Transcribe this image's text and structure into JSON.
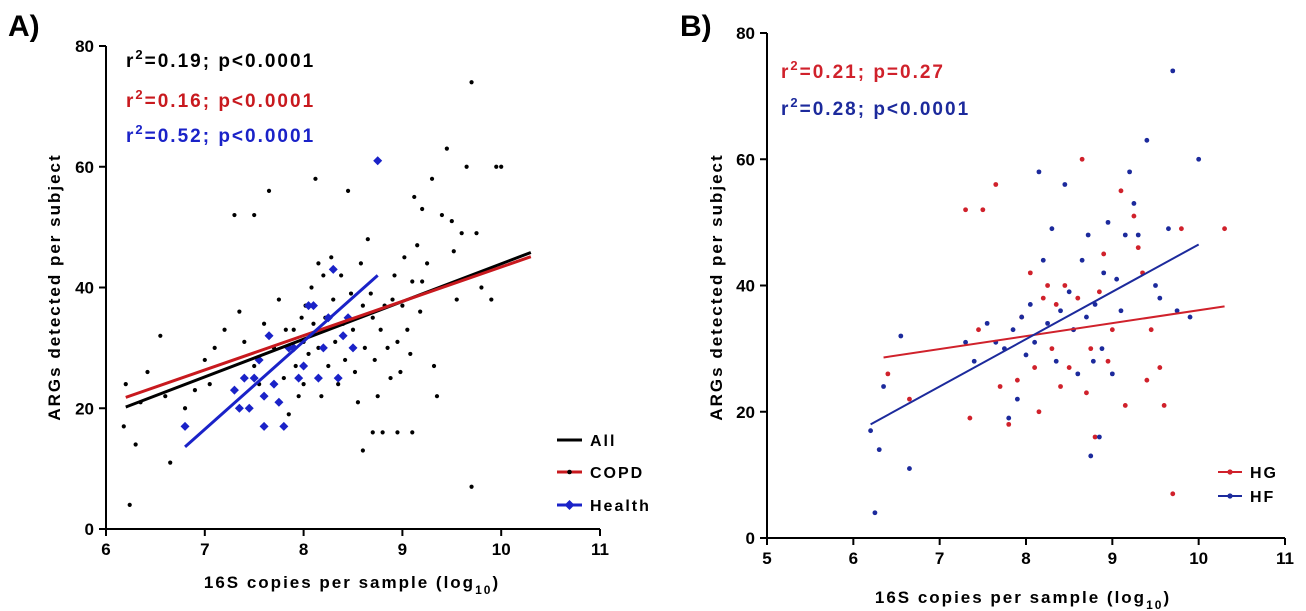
{
  "colors": {
    "all": "#000000",
    "copd": "#c8191e",
    "health": "#1a22c8",
    "hg": "#d0212b",
    "hf": "#1c2a9c"
  },
  "chart_data": [
    {
      "panel": "A)",
      "type": "scatter",
      "xlabel": "16S copies per sample (log",
      "xlabel_sub": "10",
      "xlabel_end": ")",
      "ylabel": "ARGs detected per subject",
      "xlim": [
        6,
        11
      ],
      "ylim": [
        0,
        80
      ],
      "xticks": [
        "6",
        "7",
        "8",
        "9",
        "10",
        "11"
      ],
      "yticks": [
        "0",
        "20",
        "40",
        "60",
        "80"
      ],
      "annotations": [
        {
          "r": "r",
          "sup": "2",
          "text": "=0.19; p<0.0001",
          "series": "all"
        },
        {
          "r": "r",
          "sup": "2",
          "text": "=0.16; p<0.0001",
          "series": "copd"
        },
        {
          "r": "r",
          "sup": "2",
          "text": "=0.52; p<0.0001",
          "series": "health"
        }
      ],
      "legend": {
        "position": "bottom-right",
        "entries": [
          {
            "label": "All",
            "series": "all",
            "marker": "line"
          },
          {
            "label": "COPD",
            "series": "copd",
            "marker": "dot"
          },
          {
            "label": "Health",
            "series": "health",
            "marker": "diamond"
          }
        ]
      },
      "series": [
        {
          "name": "COPD",
          "key": "copd",
          "marker": "dot",
          "points": [
            [
              6.18,
              17
            ],
            [
              6.2,
              24
            ],
            [
              6.24,
              4
            ],
            [
              6.3,
              14
            ],
            [
              6.35,
              21
            ],
            [
              6.42,
              26
            ],
            [
              6.55,
              32
            ],
            [
              6.6,
              22
            ],
            [
              6.65,
              11
            ],
            [
              6.8,
              20
            ],
            [
              6.9,
              23
            ],
            [
              7.0,
              28
            ],
            [
              7.05,
              24
            ],
            [
              7.1,
              30
            ],
            [
              7.2,
              33
            ],
            [
              7.3,
              52
            ],
            [
              7.35,
              36
            ],
            [
              7.4,
              31
            ],
            [
              7.5,
              27
            ],
            [
              7.5,
              52
            ],
            [
              7.55,
              24
            ],
            [
              7.6,
              34
            ],
            [
              7.65,
              56
            ],
            [
              7.7,
              30
            ],
            [
              7.75,
              38
            ],
            [
              7.8,
              25
            ],
            [
              7.82,
              33
            ],
            [
              7.85,
              19
            ],
            [
              7.9,
              33
            ],
            [
              7.92,
              27
            ],
            [
              7.95,
              22
            ],
            [
              7.98,
              35
            ],
            [
              8.0,
              31
            ],
            [
              8.0,
              24
            ],
            [
              8.02,
              37
            ],
            [
              8.05,
              29
            ],
            [
              8.08,
              40
            ],
            [
              8.1,
              34
            ],
            [
              8.12,
              58
            ],
            [
              8.15,
              44
            ],
            [
              8.15,
              30
            ],
            [
              8.18,
              22
            ],
            [
              8.2,
              42
            ],
            [
              8.22,
              35
            ],
            [
              8.25,
              27
            ],
            [
              8.28,
              45
            ],
            [
              8.3,
              38
            ],
            [
              8.32,
              31
            ],
            [
              8.35,
              24
            ],
            [
              8.38,
              42
            ],
            [
              8.4,
              34
            ],
            [
              8.42,
              28
            ],
            [
              8.45,
              56
            ],
            [
              8.48,
              39
            ],
            [
              8.5,
              33
            ],
            [
              8.52,
              26
            ],
            [
              8.55,
              21
            ],
            [
              8.58,
              44
            ],
            [
              8.6,
              37
            ],
            [
              8.62,
              30
            ],
            [
              8.65,
              48
            ],
            [
              8.68,
              39
            ],
            [
              8.7,
              35
            ],
            [
              8.72,
              28
            ],
            [
              8.75,
              22
            ],
            [
              8.78,
              33
            ],
            [
              8.8,
              16
            ],
            [
              8.82,
              37
            ],
            [
              8.85,
              30
            ],
            [
              8.88,
              25
            ],
            [
              8.9,
              38
            ],
            [
              8.92,
              42
            ],
            [
              8.95,
              31
            ],
            [
              8.98,
              26
            ],
            [
              9.0,
              37
            ],
            [
              9.02,
              45
            ],
            [
              9.05,
              33
            ],
            [
              9.08,
              29
            ],
            [
              9.1,
              41
            ],
            [
              9.12,
              55
            ],
            [
              9.15,
              47
            ],
            [
              9.18,
              36
            ],
            [
              9.2,
              53
            ],
            [
              9.25,
              44
            ],
            [
              9.3,
              58
            ],
            [
              9.32,
              27
            ],
            [
              9.35,
              22
            ],
            [
              9.4,
              52
            ],
            [
              9.45,
              63
            ],
            [
              9.5,
              51
            ],
            [
              9.52,
              46
            ],
            [
              9.55,
              38
            ],
            [
              9.6,
              49
            ],
            [
              9.65,
              60
            ],
            [
              9.7,
              74
            ],
            [
              9.75,
              49
            ],
            [
              9.8,
              40
            ],
            [
              9.9,
              38
            ],
            [
              9.95,
              60
            ],
            [
              10.0,
              60
            ],
            [
              9.2,
              41
            ],
            [
              8.95,
              16
            ],
            [
              9.1,
              16
            ],
            [
              8.7,
              16
            ],
            [
              8.6,
              13
            ],
            [
              9.7,
              7
            ]
          ]
        },
        {
          "name": "Health",
          "key": "health",
          "marker": "diamond",
          "points": [
            [
              6.8,
              17
            ],
            [
              7.3,
              23
            ],
            [
              7.35,
              20
            ],
            [
              7.4,
              25
            ],
            [
              7.45,
              20
            ],
            [
              7.5,
              25
            ],
            [
              7.55,
              28
            ],
            [
              7.6,
              22
            ],
            [
              7.6,
              17
            ],
            [
              7.65,
              32
            ],
            [
              7.7,
              24
            ],
            [
              7.75,
              21
            ],
            [
              7.8,
              17
            ],
            [
              7.85,
              30
            ],
            [
              7.9,
              30
            ],
            [
              7.95,
              25
            ],
            [
              8.0,
              27
            ],
            [
              8.05,
              37
            ],
            [
              8.1,
              37
            ],
            [
              8.15,
              25
            ],
            [
              8.2,
              30
            ],
            [
              8.25,
              35
            ],
            [
              8.3,
              43
            ],
            [
              8.35,
              25
            ],
            [
              8.4,
              32
            ],
            [
              8.45,
              35
            ],
            [
              8.5,
              30
            ],
            [
              8.75,
              61
            ]
          ]
        }
      ],
      "fits": [
        {
          "series": "all",
          "x": [
            6.2,
            10.3
          ],
          "y": [
            20.2,
            45.8
          ]
        },
        {
          "series": "copd",
          "x": [
            6.2,
            10.3
          ],
          "y": [
            21.8,
            45.1
          ]
        },
        {
          "series": "health",
          "x": [
            6.8,
            8.75
          ],
          "y": [
            13.6,
            42.0
          ]
        }
      ]
    },
    {
      "panel": "B)",
      "type": "scatter",
      "xlabel": "16S copies per sample (log",
      "xlabel_sub": "10",
      "xlabel_end": ")",
      "ylabel": "ARGs detected per subject",
      "xlim": [
        5,
        11
      ],
      "ylim": [
        0,
        80
      ],
      "xticks": [
        "5",
        "6",
        "7",
        "8",
        "9",
        "10",
        "11"
      ],
      "yticks": [
        "0",
        "20",
        "40",
        "60",
        "80"
      ],
      "annotations": [
        {
          "r": "r",
          "sup": "2",
          "text": "=0.21; p=0.27",
          "series": "hg"
        },
        {
          "r": "r",
          "sup": "2",
          "text": "=0.28; p<0.0001",
          "series": "hf"
        }
      ],
      "legend": {
        "position": "bottom-right",
        "entries": [
          {
            "label": "HG",
            "series": "hg",
            "marker": "dot-line"
          },
          {
            "label": "HF",
            "series": "hf",
            "marker": "dot-line"
          }
        ]
      },
      "series": [
        {
          "name": "HG",
          "key": "hg",
          "marker": "dot",
          "points": [
            [
              6.4,
              26
            ],
            [
              6.65,
              22
            ],
            [
              7.3,
              52
            ],
            [
              7.35,
              19
            ],
            [
              7.45,
              33
            ],
            [
              7.5,
              52
            ],
            [
              7.65,
              56
            ],
            [
              7.7,
              24
            ],
            [
              7.8,
              18
            ],
            [
              7.9,
              25
            ],
            [
              7.95,
              35
            ],
            [
              8.05,
              42
            ],
            [
              8.1,
              27
            ],
            [
              8.15,
              20
            ],
            [
              8.2,
              38
            ],
            [
              8.25,
              40
            ],
            [
              8.3,
              30
            ],
            [
              8.35,
              37
            ],
            [
              8.4,
              24
            ],
            [
              8.45,
              40
            ],
            [
              8.5,
              27
            ],
            [
              8.55,
              33
            ],
            [
              8.6,
              38
            ],
            [
              8.65,
              60
            ],
            [
              8.7,
              23
            ],
            [
              8.75,
              30
            ],
            [
              8.8,
              16
            ],
            [
              8.85,
              39
            ],
            [
              8.9,
              45
            ],
            [
              8.95,
              28
            ],
            [
              9.0,
              33
            ],
            [
              9.1,
              55
            ],
            [
              9.15,
              21
            ],
            [
              9.25,
              51
            ],
            [
              9.3,
              46
            ],
            [
              9.35,
              42
            ],
            [
              9.4,
              25
            ],
            [
              9.45,
              33
            ],
            [
              9.55,
              27
            ],
            [
              9.6,
              21
            ],
            [
              9.7,
              7
            ],
            [
              9.8,
              49
            ],
            [
              10.3,
              49
            ]
          ]
        },
        {
          "name": "HF",
          "key": "hf",
          "marker": "dot",
          "points": [
            [
              6.2,
              17
            ],
            [
              6.25,
              4
            ],
            [
              6.3,
              14
            ],
            [
              6.35,
              24
            ],
            [
              6.55,
              32
            ],
            [
              6.65,
              11
            ],
            [
              7.3,
              31
            ],
            [
              7.4,
              28
            ],
            [
              7.55,
              34
            ],
            [
              7.65,
              31
            ],
            [
              7.75,
              30
            ],
            [
              7.8,
              19
            ],
            [
              7.85,
              33
            ],
            [
              7.9,
              22
            ],
            [
              7.95,
              35
            ],
            [
              8.0,
              29
            ],
            [
              8.05,
              37
            ],
            [
              8.1,
              31
            ],
            [
              8.15,
              58
            ],
            [
              8.2,
              44
            ],
            [
              8.25,
              34
            ],
            [
              8.3,
              49
            ],
            [
              8.35,
              28
            ],
            [
              8.4,
              36
            ],
            [
              8.45,
              56
            ],
            [
              8.5,
              39
            ],
            [
              8.55,
              33
            ],
            [
              8.6,
              26
            ],
            [
              8.65,
              44
            ],
            [
              8.7,
              35
            ],
            [
              8.72,
              48
            ],
            [
              8.75,
              13
            ],
            [
              8.78,
              28
            ],
            [
              8.8,
              37
            ],
            [
              8.85,
              16
            ],
            [
              8.88,
              30
            ],
            [
              8.9,
              42
            ],
            [
              8.95,
              50
            ],
            [
              9.0,
              26
            ],
            [
              9.05,
              41
            ],
            [
              9.1,
              36
            ],
            [
              9.15,
              48
            ],
            [
              9.2,
              58
            ],
            [
              9.25,
              53
            ],
            [
              9.3,
              48
            ],
            [
              9.4,
              63
            ],
            [
              9.5,
              40
            ],
            [
              9.55,
              38
            ],
            [
              9.65,
              49
            ],
            [
              9.7,
              74
            ],
            [
              9.75,
              36
            ],
            [
              9.9,
              35
            ],
            [
              10.0,
              60
            ]
          ]
        }
      ],
      "fits": [
        {
          "series": "hg",
          "x": [
            6.35,
            10.3
          ],
          "y": [
            28.6,
            36.7
          ]
        },
        {
          "series": "hf",
          "x": [
            6.2,
            10.0
          ],
          "y": [
            18.0,
            46.5
          ]
        }
      ]
    }
  ]
}
